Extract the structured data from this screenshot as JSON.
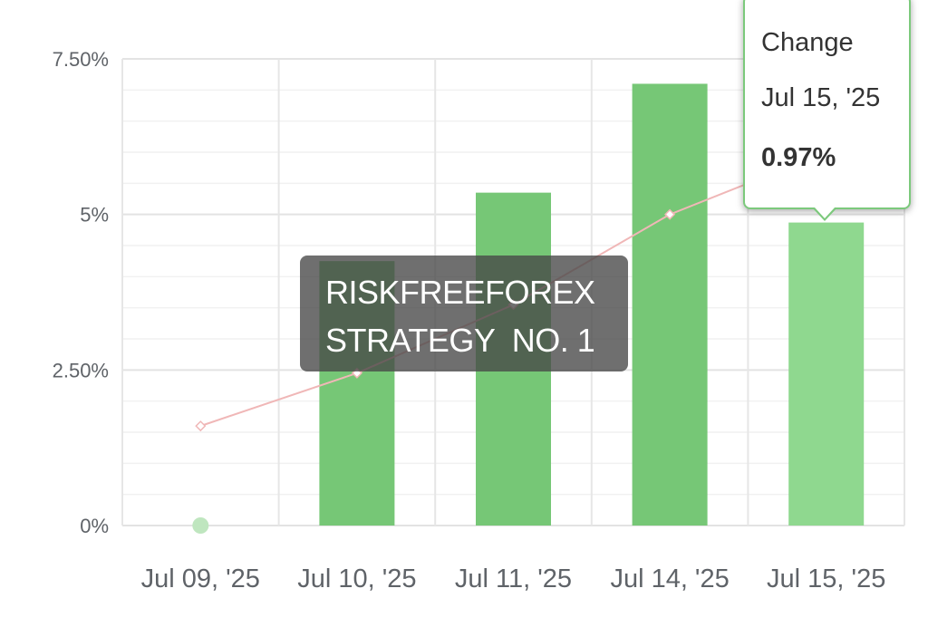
{
  "chart_data": {
    "type": "bar",
    "categories": [
      "Jul 09, '25",
      "Jul 10, '25",
      "Jul 11, '25",
      "Jul 14, '25",
      "Jul 15, '25"
    ],
    "series": [
      {
        "type": "bar",
        "values": [
          0,
          4.25,
          5.35,
          7.1,
          4.87
        ],
        "color": "#76c776"
      },
      {
        "type": "line",
        "values": [
          1.6,
          2.45,
          3.55,
          5.0,
          6.0
        ],
        "color": "#f0b7b7"
      }
    ],
    "yticks": [
      "0%",
      "2.50%",
      "5%",
      "7.50%"
    ],
    "ytick_values": [
      0,
      2.5,
      5,
      7.5
    ],
    "ylim": [
      0,
      7.5
    ],
    "grid": true
  },
  "overlay": {
    "line1": "RISKFREEFOREX",
    "line2": "STRATEGY  NO. 1"
  },
  "tooltip": {
    "series_label": "Change",
    "date": "Jul 15, '25",
    "value": "0.97%"
  }
}
